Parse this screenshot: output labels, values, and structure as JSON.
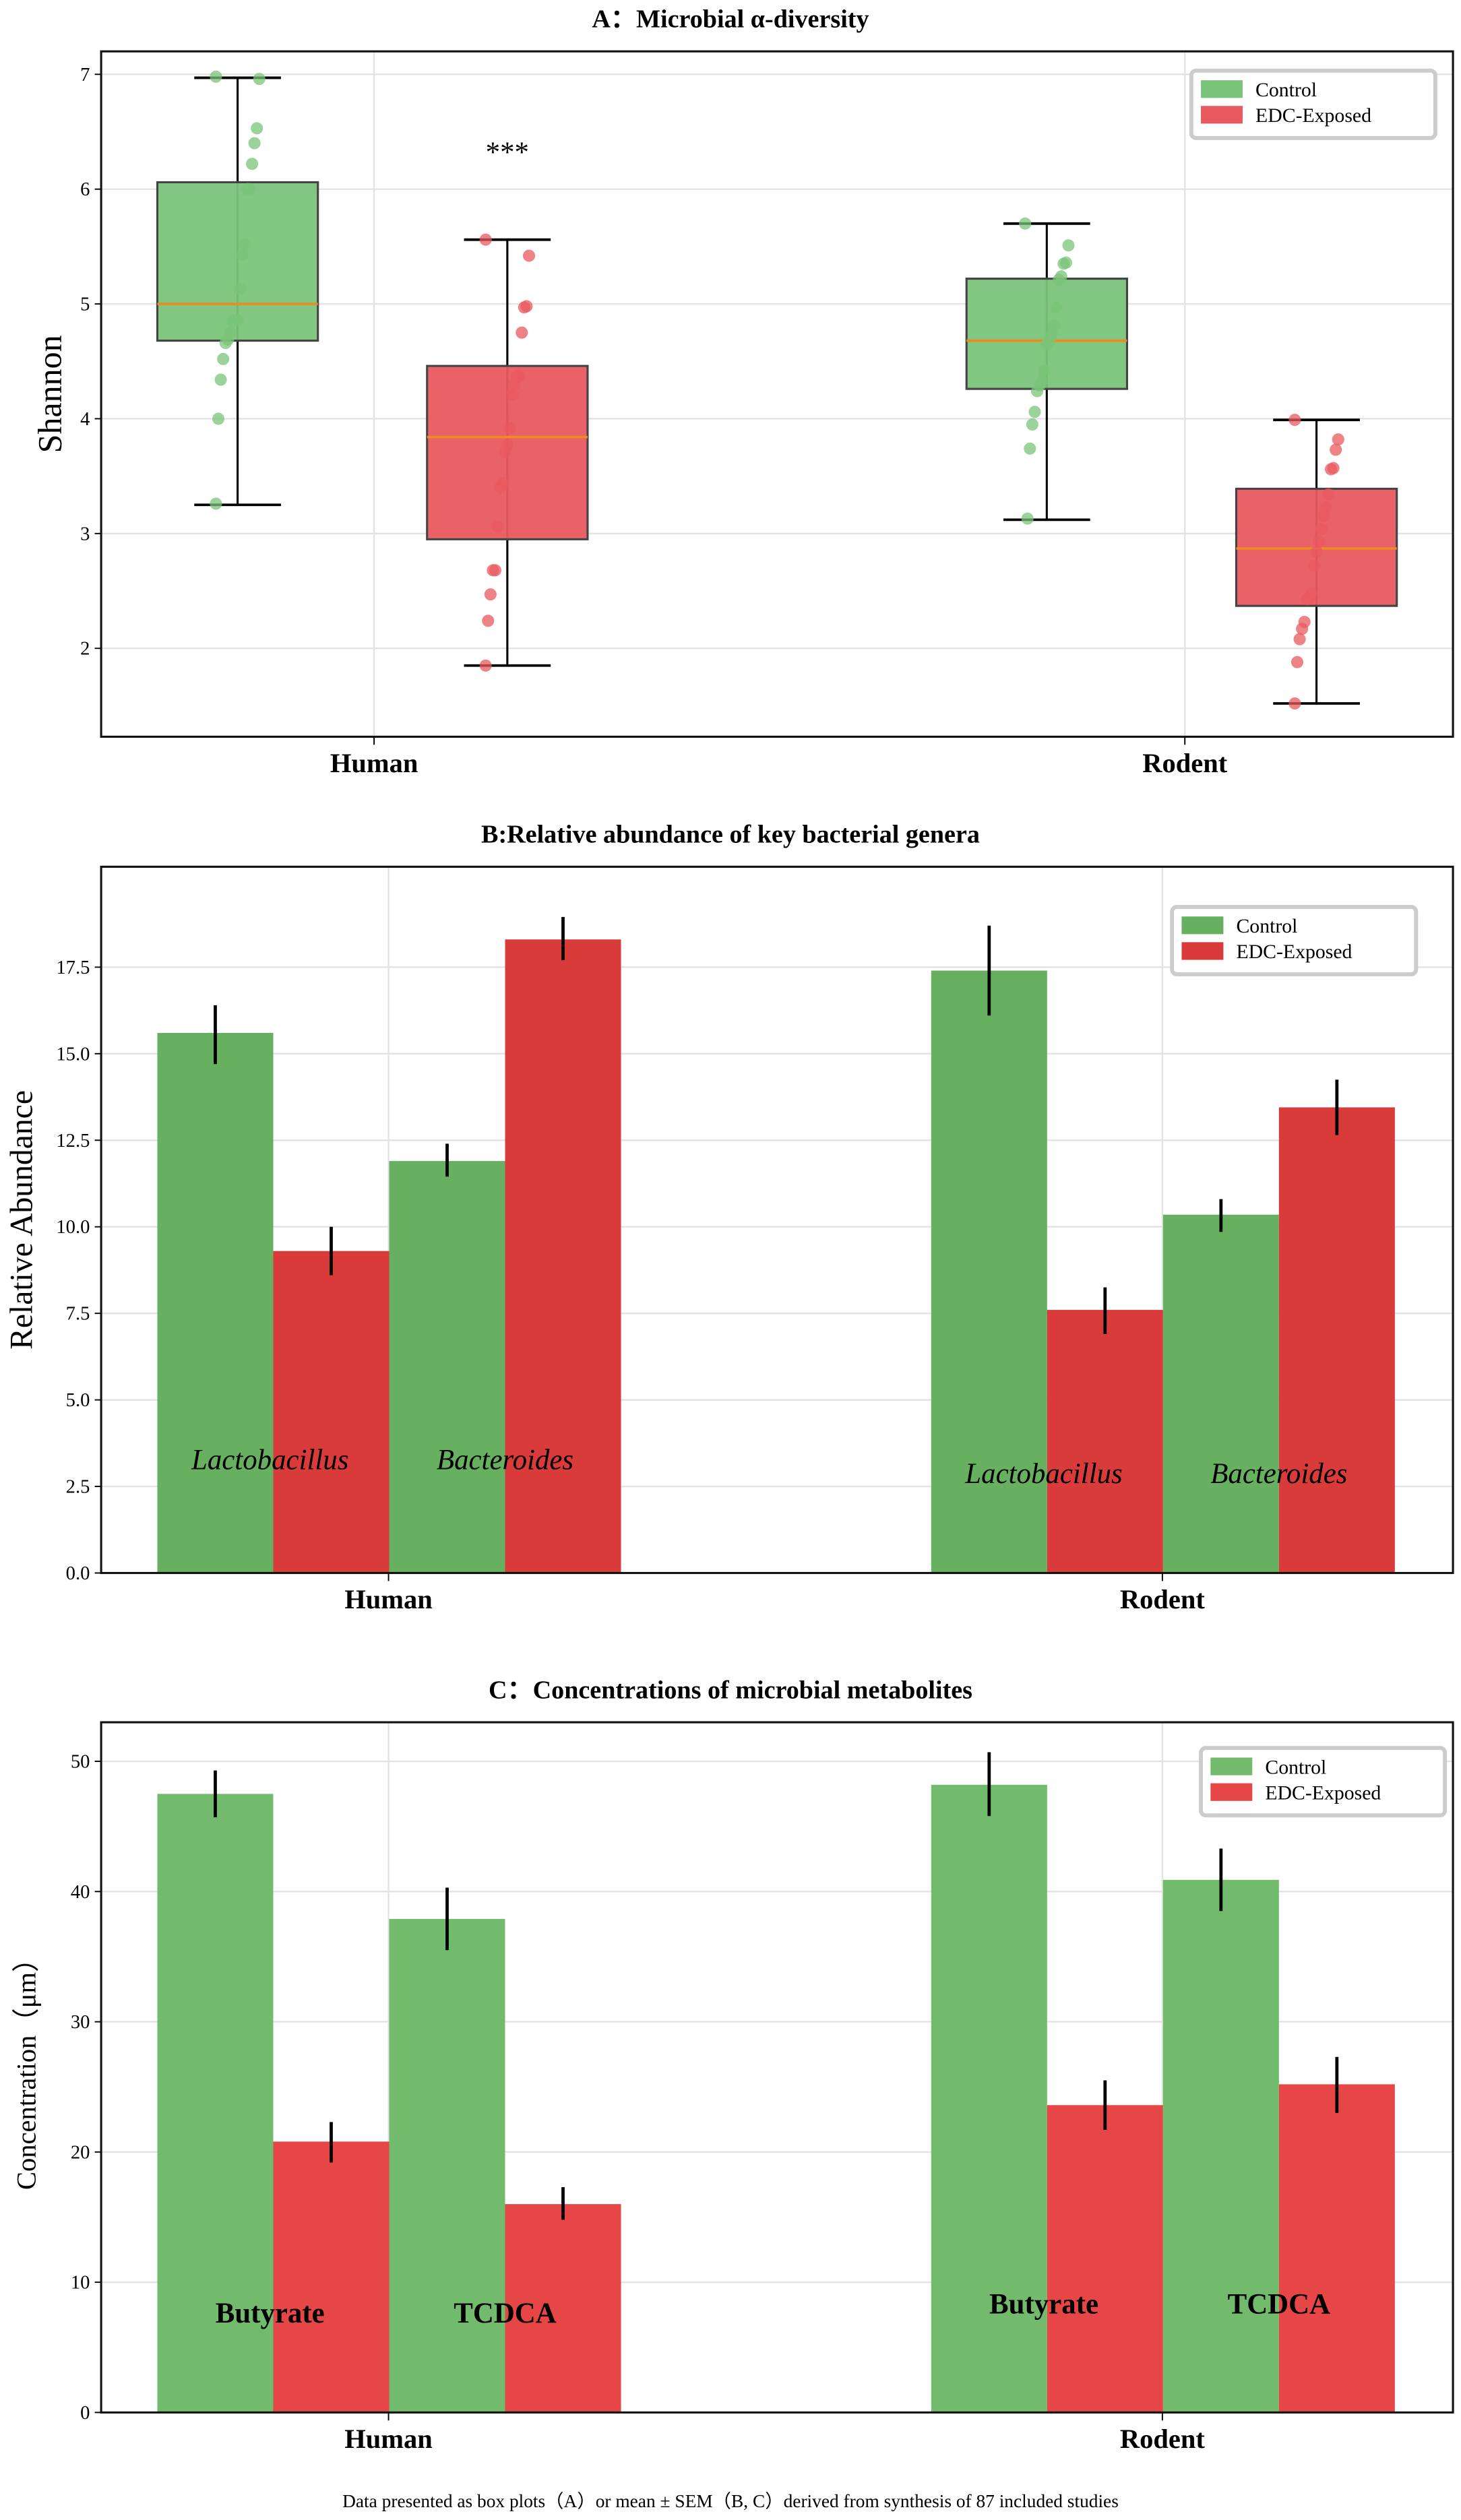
{
  "colors": {
    "control_a": "#7ac47a",
    "edc_a": "#e85a5f",
    "control_b": "#66b060",
    "edc_b": "#d93b3b",
    "control_c": "#72bb6d",
    "edc_c": "#e64646",
    "median": "#f08a1c"
  },
  "footer": "Data presented as box plots（A）or mean ± SEM（B, C）derived from synthesis of 87  included studies",
  "chart_data": [
    {
      "type": "box",
      "title": "A：Microbial α-diversity",
      "ylabel": "Shannon",
      "ylim": [
        1.23,
        7.2
      ],
      "yticks": [
        "2",
        "3",
        "4",
        "5",
        "6",
        "7"
      ],
      "categories": [
        "Human",
        "Rodent"
      ],
      "legend": [
        "Control",
        "EDC-Exposed"
      ],
      "legend_position": "top-right",
      "annotation": {
        "text": "***",
        "category": "Human",
        "series": "EDC-Exposed",
        "y": 6.35
      },
      "boxes": [
        {
          "category": "Human",
          "series": "Control",
          "whisker_low": 3.25,
          "q1": 4.68,
          "median": 5.0,
          "q3": 6.06,
          "whisker_high": 6.97,
          "points": [
            6.98,
            6.96,
            6.53,
            6.4,
            6.22,
            6.0,
            6.0,
            5.52,
            5.43,
            5.13,
            4.86,
            4.86,
            4.85,
            4.75,
            4.69,
            4.66,
            4.52,
            4.34,
            4.0,
            3.26
          ]
        },
        {
          "category": "Human",
          "series": "EDC-Exposed",
          "whisker_low": 1.85,
          "q1": 2.95,
          "median": 3.84,
          "q3": 4.46,
          "whisker_high": 5.56,
          "points": [
            5.56,
            5.42,
            4.98,
            4.97,
            4.75,
            4.37,
            4.37,
            4.3,
            4.21,
            3.92,
            3.77,
            3.71,
            3.44,
            3.4,
            3.06,
            2.68,
            2.68,
            2.47,
            2.24,
            1.85
          ]
        },
        {
          "category": "Rodent",
          "series": "Control",
          "whisker_low": 3.12,
          "q1": 4.26,
          "median": 4.68,
          "q3": 5.22,
          "whisker_high": 5.7,
          "points": [
            5.7,
            5.51,
            5.36,
            5.35,
            5.24,
            5.21,
            4.97,
            4.81,
            4.74,
            4.68,
            4.65,
            4.42,
            4.33,
            4.29,
            4.24,
            4.06,
            3.95,
            3.74,
            3.13
          ]
        },
        {
          "category": "Rodent",
          "series": "EDC-Exposed",
          "whisker_low": 1.52,
          "q1": 2.37,
          "median": 2.87,
          "q3": 3.39,
          "whisker_high": 3.99,
          "points": [
            3.99,
            3.82,
            3.73,
            3.57,
            3.56,
            3.34,
            3.23,
            3.15,
            3.04,
            2.93,
            2.84,
            2.72,
            2.48,
            2.44,
            2.43,
            2.23,
            2.17,
            2.08,
            1.88,
            1.52
          ]
        }
      ]
    },
    {
      "type": "bar",
      "title": "B:Relative abundance of key bacterial genera",
      "ylabel": "Relative Abundance",
      "ylim": [
        0,
        20.4
      ],
      "yticks": [
        "0.0",
        "2.5",
        "5.0",
        "7.5",
        "10.0",
        "12.5",
        "15.0",
        "17.5"
      ],
      "categories": [
        "Human",
        "Rodent"
      ],
      "subgroups": [
        "Lactobacillus",
        "Bacteroides"
      ],
      "subgroup_italic": true,
      "legend": [
        "Control",
        "EDC-Exposed"
      ],
      "legend_position": "top-right",
      "bars": [
        {
          "category": "Human",
          "subgroup": "Lactobacillus",
          "series": "Control",
          "value": 15.6,
          "err_low": 14.7,
          "err_high": 16.4
        },
        {
          "category": "Human",
          "subgroup": "Lactobacillus",
          "series": "EDC-Exposed",
          "value": 9.3,
          "err_low": 8.6,
          "err_high": 10.0
        },
        {
          "category": "Human",
          "subgroup": "Bacteroides",
          "series": "Control",
          "value": 11.9,
          "err_low": 11.45,
          "err_high": 12.4
        },
        {
          "category": "Human",
          "subgroup": "Bacteroides",
          "series": "EDC-Exposed",
          "value": 18.3,
          "err_low": 17.7,
          "err_high": 18.95
        },
        {
          "category": "Rodent",
          "subgroup": "Lactobacillus",
          "series": "Control",
          "value": 17.4,
          "err_low": 16.1,
          "err_high": 18.7
        },
        {
          "category": "Rodent",
          "subgroup": "Lactobacillus",
          "series": "EDC-Exposed",
          "value": 7.6,
          "err_low": 6.9,
          "err_high": 8.25
        },
        {
          "category": "Rodent",
          "subgroup": "Bacteroides",
          "series": "Control",
          "value": 10.35,
          "err_low": 9.85,
          "err_high": 10.8
        },
        {
          "category": "Rodent",
          "subgroup": "Bacteroides",
          "series": "EDC-Exposed",
          "value": 13.45,
          "err_low": 12.65,
          "err_high": 14.25
        }
      ]
    },
    {
      "type": "bar",
      "title": "C：Concentrations of microbial metabolites",
      "ylabel": "Concentration（μm）",
      "ylim": [
        0,
        53
      ],
      "yticks": [
        "0",
        "10",
        "20",
        "30",
        "40",
        "50"
      ],
      "categories": [
        "Human",
        "Rodent"
      ],
      "subgroups": [
        "Butyrate",
        "TCDCA"
      ],
      "subgroup_italic": false,
      "legend": [
        "Control",
        "EDC-Exposed"
      ],
      "legend_position": "top-right",
      "bars": [
        {
          "category": "Human",
          "subgroup": "Butyrate",
          "series": "Control",
          "value": 47.5,
          "err_low": 45.7,
          "err_high": 49.3
        },
        {
          "category": "Human",
          "subgroup": "Butyrate",
          "series": "EDC-Exposed",
          "value": 20.8,
          "err_low": 19.2,
          "err_high": 22.3
        },
        {
          "category": "Human",
          "subgroup": "TCDCA",
          "series": "Control",
          "value": 37.9,
          "err_low": 35.5,
          "err_high": 40.3
        },
        {
          "category": "Human",
          "subgroup": "TCDCA",
          "series": "EDC-Exposed",
          "value": 16.0,
          "err_low": 14.8,
          "err_high": 17.3
        },
        {
          "category": "Rodent",
          "subgroup": "Butyrate",
          "series": "Control",
          "value": 48.2,
          "err_low": 45.8,
          "err_high": 50.7
        },
        {
          "category": "Rodent",
          "subgroup": "Butyrate",
          "series": "EDC-Exposed",
          "value": 23.6,
          "err_low": 21.7,
          "err_high": 25.5
        },
        {
          "category": "Rodent",
          "subgroup": "TCDCA",
          "series": "Control",
          "value": 40.9,
          "err_low": 38.5,
          "err_high": 43.3
        },
        {
          "category": "Rodent",
          "subgroup": "TCDCA",
          "series": "EDC-Exposed",
          "value": 25.2,
          "err_low": 23.0,
          "err_high": 27.3
        }
      ]
    }
  ]
}
